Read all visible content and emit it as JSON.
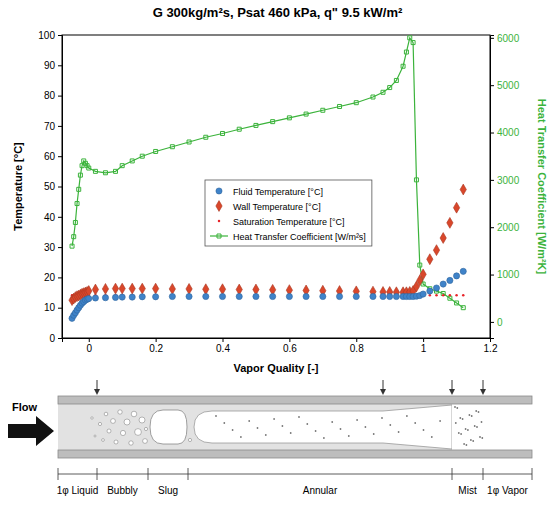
{
  "chart_data": {
    "type": "scatter",
    "title": "G 300kg/m²s, Psat 460 kPa, q\" 9.5 kW/m²",
    "xlabel": "Vapor Quality [-]",
    "ylabel": "Temperature [°C]",
    "y2label": "Heat Transfer Coefficient [W/m²K]",
    "xlim": [
      -0.08,
      1.2
    ],
    "xticks": [
      0,
      0.2,
      0.4,
      0.6,
      0.8,
      1,
      1.2
    ],
    "ylim": [
      0,
      100
    ],
    "yticks": [
      0,
      10,
      20,
      30,
      40,
      50,
      60,
      70,
      80,
      90,
      100
    ],
    "y2lim": [
      -340,
      6060
    ],
    "y2ticks": [
      0,
      1000,
      2000,
      3000,
      4000,
      5000,
      6000
    ],
    "grid": false,
    "legend": "center",
    "x": [
      -0.05,
      -0.045,
      -0.04,
      -0.035,
      -0.03,
      -0.025,
      -0.02,
      -0.015,
      -0.01,
      -0.005,
      0,
      0.02,
      0.05,
      0.08,
      0.1,
      0.13,
      0.16,
      0.2,
      0.25,
      0.3,
      0.35,
      0.4,
      0.45,
      0.5,
      0.55,
      0.6,
      0.65,
      0.7,
      0.75,
      0.8,
      0.85,
      0.88,
      0.9,
      0.92,
      0.94,
      0.95,
      0.96,
      0.97,
      0.98,
      0.99,
      1,
      1.02,
      1.04,
      1.06,
      1.08,
      1.1,
      1.12
    ],
    "series": [
      {
        "name": "Fluid Temperature [°C]",
        "type": "scatter",
        "color": "#3f83c9",
        "marker": "circle",
        "line_style": "none",
        "values": [
          6.5,
          7.5,
          8.3,
          9.2,
          10,
          10.8,
          11.5,
          12,
          12.5,
          12.8,
          13,
          13.2,
          13.3,
          13.4,
          13.5,
          13.5,
          13.6,
          13.6,
          13.7,
          13.7,
          13.7,
          13.7,
          13.7,
          13.7,
          13.7,
          13.7,
          13.7,
          13.7,
          13.7,
          13.7,
          13.7,
          13.7,
          13.7,
          13.7,
          13.7,
          13.7,
          13.7,
          13.7,
          13.8,
          14,
          14.5,
          15.5,
          16.5,
          17.8,
          19,
          20.5,
          22
        ]
      },
      {
        "name": "Wall Temperature [°C]",
        "type": "scatter",
        "color": "#d9472b",
        "marker": "diamond",
        "line_style": "none",
        "values": [
          12.5,
          13,
          13.5,
          13.8,
          14,
          14.3,
          14.6,
          14.8,
          15,
          15.2,
          15.5,
          16,
          16.2,
          16.3,
          16.3,
          16.3,
          16.3,
          16.3,
          16.2,
          16.2,
          16.1,
          16.1,
          16,
          16,
          15.9,
          15.8,
          15.7,
          15.6,
          15.5,
          15.4,
          15.3,
          15.2,
          15.2,
          15.1,
          15.1,
          15.1,
          15.2,
          15.5,
          17,
          19,
          21,
          26,
          29,
          33,
          38,
          43,
          49
        ]
      },
      {
        "name": "Saturation Temperature [°C]",
        "type": "scatter",
        "color": "#e8252a",
        "marker": "dot",
        "line_style": "none",
        "values": [
          14.1,
          14.1,
          14.1,
          14.1,
          14.1,
          14.1,
          14.1,
          14.1,
          14.1,
          14.1,
          14.1,
          14.1,
          14.1,
          14.1,
          14.1,
          14.1,
          14.1,
          14.1,
          14.1,
          14.1,
          14.1,
          14.1,
          14.1,
          14.1,
          14.1,
          14.1,
          14.1,
          14.1,
          14.1,
          14.1,
          14.1,
          14.1,
          14.1,
          14.1,
          14.1,
          14.1,
          14.1,
          14.1,
          14.1,
          14.1,
          14.1,
          14.1,
          14.1,
          14.1,
          14.1,
          14.1,
          14.1
        ]
      },
      {
        "name": "Heat Transfer Coefficient [W/m²s]",
        "type": "line",
        "color": "#3bb33b",
        "marker": "open-square",
        "line_style": "solid",
        "axis": "y2",
        "values": [
          1600,
          1800,
          2100,
          2500,
          2800,
          3100,
          3300,
          3400,
          3350,
          3300,
          3250,
          3180,
          3150,
          3180,
          3300,
          3400,
          3500,
          3600,
          3700,
          3800,
          3900,
          3980,
          4070,
          4150,
          4230,
          4310,
          4390,
          4470,
          4550,
          4630,
          4750,
          4850,
          4950,
          5100,
          5400,
          5700,
          6000,
          5900,
          3000,
          1200,
          800,
          700,
          650,
          600,
          500,
          400,
          300
        ]
      }
    ]
  },
  "diagram": {
    "flow_label": "Flow",
    "regimes": [
      "1φ Liquid",
      "Bubbly",
      "Slug",
      "Annular",
      "Mist",
      "1φ Vapor"
    ]
  }
}
